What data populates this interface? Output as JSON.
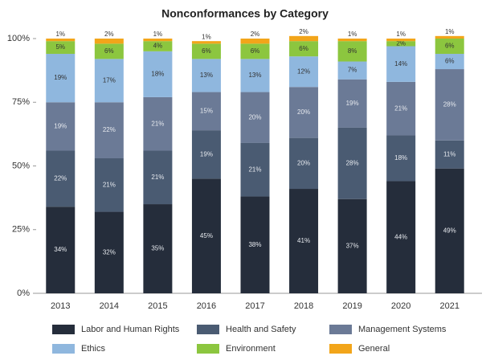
{
  "chart_data": {
    "type": "stacked_bar",
    "title": "Nonconformances by Category",
    "categories": [
      "2013",
      "2014",
      "2015",
      "2016",
      "2017",
      "2018",
      "2019",
      "2020",
      "2021"
    ],
    "series": [
      {
        "name": "Labor and Human Rights",
        "color": "#252d3b",
        "values": [
          34,
          32,
          35,
          45,
          38,
          41,
          37,
          44,
          49
        ],
        "value_labels": [
          "34%",
          "32%",
          "35%",
          "45%",
          "38%",
          "41%",
          "37%",
          "44%",
          "49%"
        ]
      },
      {
        "name": "Health and Safety",
        "color": "#4a5b72",
        "values": [
          22,
          21,
          21,
          19,
          21,
          20,
          28,
          18,
          11
        ],
        "value_labels": [
          "22%",
          "21%",
          "21%",
          "19%",
          "21%",
          "20%",
          "28%",
          "18%",
          "11%"
        ]
      },
      {
        "name": "Management Systems",
        "color": "#6b7a96",
        "values": [
          19,
          22,
          21,
          15,
          20,
          20,
          19,
          21,
          28
        ],
        "value_labels": [
          "19%",
          "22%",
          "21%",
          "15%",
          "20%",
          "20%",
          "19%",
          "21%",
          "28%"
        ]
      },
      {
        "name": "Ethics",
        "color": "#8fb7de",
        "values": [
          19,
          17,
          18,
          13,
          13,
          12,
          7,
          14,
          6
        ],
        "value_labels": [
          "19%",
          "17%",
          "18%",
          "13%",
          "13%",
          "12%",
          "7%",
          "14%",
          "6%"
        ]
      },
      {
        "name": "Environment",
        "color": "#8cc63f",
        "values": [
          5,
          6,
          4,
          6,
          6,
          6,
          8,
          2,
          6
        ],
        "value_labels": [
          "5%",
          "6%",
          "4%",
          "6%",
          "6%",
          "6%",
          "8%",
          "2%",
          "6%"
        ]
      },
      {
        "name": "General",
        "color": "#f2a51a",
        "values": [
          1,
          2,
          1,
          1,
          2,
          2,
          1,
          1,
          1
        ],
        "value_labels": [
          "1%",
          "2%",
          "1%",
          "1%",
          "2%",
          "2%",
          "1%",
          "1%",
          "1%"
        ]
      }
    ],
    "ylim": [
      0,
      100
    ],
    "yticks": [
      {
        "value": 0,
        "label": "0%"
      },
      {
        "value": 25,
        "label": "25%"
      },
      {
        "value": 50,
        "label": "50%"
      },
      {
        "value": 75,
        "label": "75%"
      },
      {
        "value": 100,
        "label": "100%"
      }
    ],
    "grid": false
  }
}
